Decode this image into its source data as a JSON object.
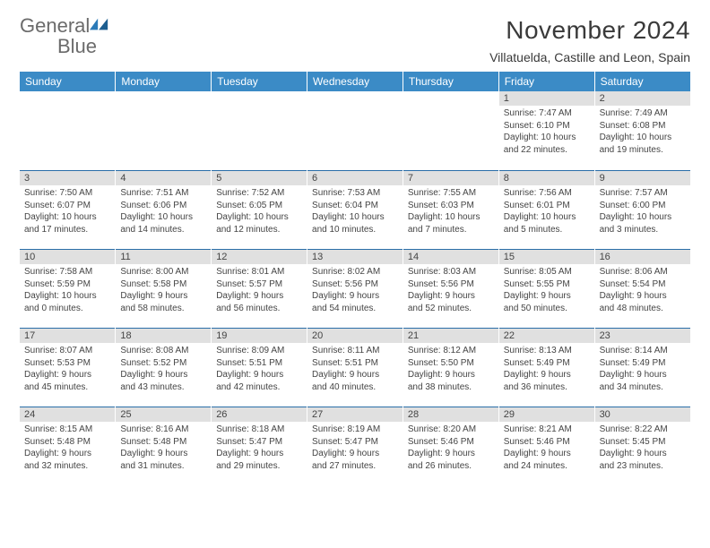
{
  "logo": {
    "text1": "General",
    "text2": "Blue"
  },
  "title": "November 2024",
  "location": "Villatuelda, Castille and Leon, Spain",
  "colors": {
    "header_bg": "#3b8bc6",
    "header_text": "#ffffff",
    "daynum_bg": "#e0e0e0",
    "border_top": "#2a6ea8",
    "logo_gray": "#6b6b6b",
    "logo_blue": "#2a7ab8"
  },
  "daysOfWeek": [
    "Sunday",
    "Monday",
    "Tuesday",
    "Wednesday",
    "Thursday",
    "Friday",
    "Saturday"
  ],
  "weeks": [
    [
      null,
      null,
      null,
      null,
      null,
      {
        "n": "1",
        "sr": "Sunrise: 7:47 AM",
        "ss": "Sunset: 6:10 PM",
        "d1": "Daylight: 10 hours",
        "d2": "and 22 minutes."
      },
      {
        "n": "2",
        "sr": "Sunrise: 7:49 AM",
        "ss": "Sunset: 6:08 PM",
        "d1": "Daylight: 10 hours",
        "d2": "and 19 minutes."
      }
    ],
    [
      {
        "n": "3",
        "sr": "Sunrise: 7:50 AM",
        "ss": "Sunset: 6:07 PM",
        "d1": "Daylight: 10 hours",
        "d2": "and 17 minutes."
      },
      {
        "n": "4",
        "sr": "Sunrise: 7:51 AM",
        "ss": "Sunset: 6:06 PM",
        "d1": "Daylight: 10 hours",
        "d2": "and 14 minutes."
      },
      {
        "n": "5",
        "sr": "Sunrise: 7:52 AM",
        "ss": "Sunset: 6:05 PM",
        "d1": "Daylight: 10 hours",
        "d2": "and 12 minutes."
      },
      {
        "n": "6",
        "sr": "Sunrise: 7:53 AM",
        "ss": "Sunset: 6:04 PM",
        "d1": "Daylight: 10 hours",
        "d2": "and 10 minutes."
      },
      {
        "n": "7",
        "sr": "Sunrise: 7:55 AM",
        "ss": "Sunset: 6:03 PM",
        "d1": "Daylight: 10 hours",
        "d2": "and 7 minutes."
      },
      {
        "n": "8",
        "sr": "Sunrise: 7:56 AM",
        "ss": "Sunset: 6:01 PM",
        "d1": "Daylight: 10 hours",
        "d2": "and 5 minutes."
      },
      {
        "n": "9",
        "sr": "Sunrise: 7:57 AM",
        "ss": "Sunset: 6:00 PM",
        "d1": "Daylight: 10 hours",
        "d2": "and 3 minutes."
      }
    ],
    [
      {
        "n": "10",
        "sr": "Sunrise: 7:58 AM",
        "ss": "Sunset: 5:59 PM",
        "d1": "Daylight: 10 hours",
        "d2": "and 0 minutes."
      },
      {
        "n": "11",
        "sr": "Sunrise: 8:00 AM",
        "ss": "Sunset: 5:58 PM",
        "d1": "Daylight: 9 hours",
        "d2": "and 58 minutes."
      },
      {
        "n": "12",
        "sr": "Sunrise: 8:01 AM",
        "ss": "Sunset: 5:57 PM",
        "d1": "Daylight: 9 hours",
        "d2": "and 56 minutes."
      },
      {
        "n": "13",
        "sr": "Sunrise: 8:02 AM",
        "ss": "Sunset: 5:56 PM",
        "d1": "Daylight: 9 hours",
        "d2": "and 54 minutes."
      },
      {
        "n": "14",
        "sr": "Sunrise: 8:03 AM",
        "ss": "Sunset: 5:56 PM",
        "d1": "Daylight: 9 hours",
        "d2": "and 52 minutes."
      },
      {
        "n": "15",
        "sr": "Sunrise: 8:05 AM",
        "ss": "Sunset: 5:55 PM",
        "d1": "Daylight: 9 hours",
        "d2": "and 50 minutes."
      },
      {
        "n": "16",
        "sr": "Sunrise: 8:06 AM",
        "ss": "Sunset: 5:54 PM",
        "d1": "Daylight: 9 hours",
        "d2": "and 48 minutes."
      }
    ],
    [
      {
        "n": "17",
        "sr": "Sunrise: 8:07 AM",
        "ss": "Sunset: 5:53 PM",
        "d1": "Daylight: 9 hours",
        "d2": "and 45 minutes."
      },
      {
        "n": "18",
        "sr": "Sunrise: 8:08 AM",
        "ss": "Sunset: 5:52 PM",
        "d1": "Daylight: 9 hours",
        "d2": "and 43 minutes."
      },
      {
        "n": "19",
        "sr": "Sunrise: 8:09 AM",
        "ss": "Sunset: 5:51 PM",
        "d1": "Daylight: 9 hours",
        "d2": "and 42 minutes."
      },
      {
        "n": "20",
        "sr": "Sunrise: 8:11 AM",
        "ss": "Sunset: 5:51 PM",
        "d1": "Daylight: 9 hours",
        "d2": "and 40 minutes."
      },
      {
        "n": "21",
        "sr": "Sunrise: 8:12 AM",
        "ss": "Sunset: 5:50 PM",
        "d1": "Daylight: 9 hours",
        "d2": "and 38 minutes."
      },
      {
        "n": "22",
        "sr": "Sunrise: 8:13 AM",
        "ss": "Sunset: 5:49 PM",
        "d1": "Daylight: 9 hours",
        "d2": "and 36 minutes."
      },
      {
        "n": "23",
        "sr": "Sunrise: 8:14 AM",
        "ss": "Sunset: 5:49 PM",
        "d1": "Daylight: 9 hours",
        "d2": "and 34 minutes."
      }
    ],
    [
      {
        "n": "24",
        "sr": "Sunrise: 8:15 AM",
        "ss": "Sunset: 5:48 PM",
        "d1": "Daylight: 9 hours",
        "d2": "and 32 minutes."
      },
      {
        "n": "25",
        "sr": "Sunrise: 8:16 AM",
        "ss": "Sunset: 5:48 PM",
        "d1": "Daylight: 9 hours",
        "d2": "and 31 minutes."
      },
      {
        "n": "26",
        "sr": "Sunrise: 8:18 AM",
        "ss": "Sunset: 5:47 PM",
        "d1": "Daylight: 9 hours",
        "d2": "and 29 minutes."
      },
      {
        "n": "27",
        "sr": "Sunrise: 8:19 AM",
        "ss": "Sunset: 5:47 PM",
        "d1": "Daylight: 9 hours",
        "d2": "and 27 minutes."
      },
      {
        "n": "28",
        "sr": "Sunrise: 8:20 AM",
        "ss": "Sunset: 5:46 PM",
        "d1": "Daylight: 9 hours",
        "d2": "and 26 minutes."
      },
      {
        "n": "29",
        "sr": "Sunrise: 8:21 AM",
        "ss": "Sunset: 5:46 PM",
        "d1": "Daylight: 9 hours",
        "d2": "and 24 minutes."
      },
      {
        "n": "30",
        "sr": "Sunrise: 8:22 AM",
        "ss": "Sunset: 5:45 PM",
        "d1": "Daylight: 9 hours",
        "d2": "and 23 minutes."
      }
    ]
  ]
}
